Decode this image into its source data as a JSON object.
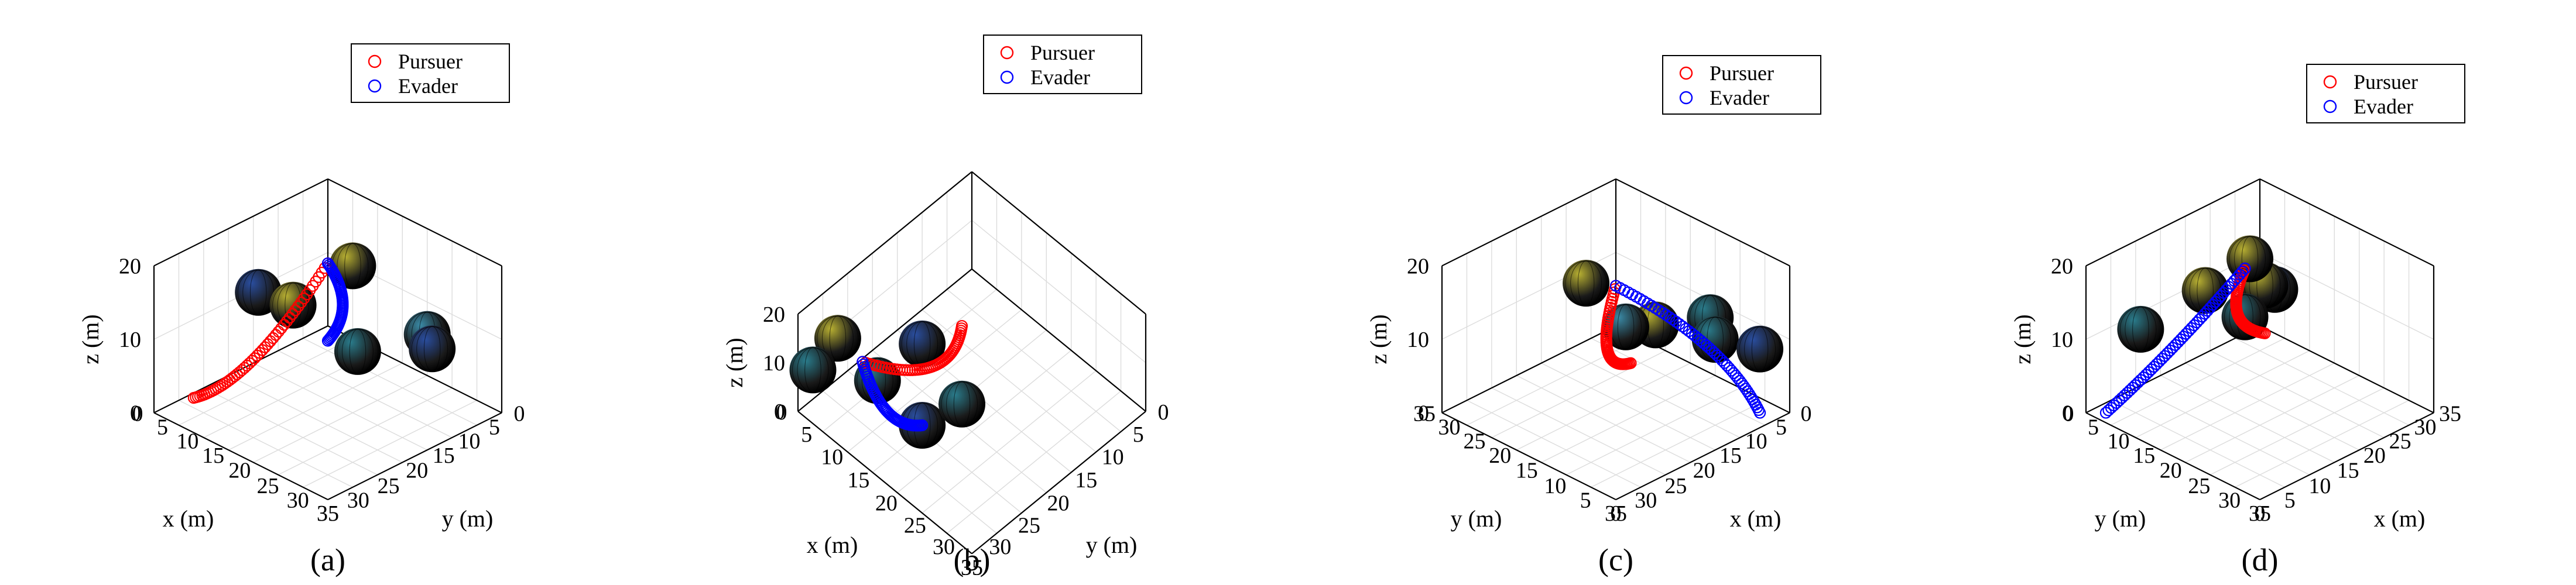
{
  "figure": {
    "panels": [
      {
        "caption": "(a)"
      },
      {
        "caption": "(b)"
      },
      {
        "caption": "(c)"
      },
      {
        "caption": "(d)"
      }
    ]
  },
  "chart_data": [
    {
      "type": "scatter3d",
      "caption": "(a)",
      "title": "",
      "xlabel": "x (m)",
      "ylabel": "y (m)",
      "zlabel": "z (m)",
      "xlim": [
        0,
        35
      ],
      "ylim": [
        0,
        35
      ],
      "zlim": [
        0,
        20
      ],
      "x_ticks": [
        0,
        5,
        10,
        15,
        20,
        25,
        30,
        35
      ],
      "y_ticks": [
        0,
        5,
        10,
        15,
        20,
        25,
        30,
        35
      ],
      "z_ticks": [
        0,
        10,
        20
      ],
      "grid": true,
      "legend": {
        "position": "top-right",
        "entries": [
          "Pursuer",
          "Evader"
        ]
      },
      "view": {
        "azimuth_deg": 45,
        "elevation_deg": 30
      },
      "series": [
        {
          "name": "Pursuer",
          "color": "#ff0000",
          "marker": "open-circle",
          "start": [
            1,
            28,
            0
          ],
          "end": [
            17,
            17,
            20
          ],
          "control": [
            10,
            26,
            4
          ]
        },
        {
          "name": "Evader",
          "color": "#0000ff",
          "marker": "open-circle",
          "start": [
            3,
            3,
            0
          ],
          "end": [
            17,
            17,
            20
          ],
          "control": [
            14,
            8,
            10
          ]
        }
      ],
      "obstacles": [
        {
          "center": [
            4,
            18,
            12
          ],
          "color": "#2a4ea0"
        },
        {
          "center": [
            16,
            23,
            16
          ],
          "color": "#b8b032"
        },
        {
          "center": [
            20,
            15,
            20
          ],
          "color": "#b8b032"
        },
        {
          "center": [
            20,
            14,
            8
          ],
          "color": "#2a7c8c"
        },
        {
          "center": [
            28,
            8,
            11
          ],
          "color": "#3a8aa6"
        },
        {
          "center": [
            24,
            3,
            6
          ],
          "color": "#2a4ea0"
        }
      ]
    },
    {
      "type": "scatter3d",
      "caption": "(b)",
      "title": "",
      "xlabel": "x (m)",
      "ylabel": "y (m)",
      "zlabel": "z (m)",
      "xlim": [
        0,
        35
      ],
      "ylim": [
        0,
        35
      ],
      "zlim": [
        0,
        20
      ],
      "x_ticks": [
        0,
        5,
        10,
        15,
        20,
        25,
        30,
        35
      ],
      "y_ticks": [
        0,
        5,
        10,
        15,
        20,
        25,
        30,
        35
      ],
      "z_ticks": [
        0,
        10,
        20
      ],
      "grid": true,
      "legend": {
        "position": "top-right",
        "entries": [
          "Pursuer",
          "Evader"
        ]
      },
      "view": {
        "azimuth_deg": 45,
        "elevation_deg": 55
      },
      "series": [
        {
          "name": "Pursuer",
          "color": "#ff0000",
          "marker": "open-circle",
          "start": [
            6,
            8,
            0
          ],
          "end": [
            4,
            26,
            6
          ],
          "control": [
            14,
            18,
            2
          ]
        },
        {
          "name": "Evader",
          "color": "#0000ff",
          "marker": "open-circle",
          "start": [
            19,
            29,
            8
          ],
          "end": [
            4,
            26,
            6
          ],
          "control": [
            12,
            30,
            2
          ]
        }
      ],
      "obstacles": [
        {
          "center": [
            1,
            28,
            10
          ],
          "color": "#b8b032"
        },
        {
          "center": [
            0,
            32,
            6
          ],
          "color": "#2a7c8c"
        },
        {
          "center": [
            9,
            28,
            8
          ],
          "color": "#2a7c8c"
        },
        {
          "center": [
            19,
            29,
            8
          ],
          "color": "#2a4ea0"
        },
        {
          "center": [
            6,
            16,
            3
          ],
          "color": "#2a4ea0"
        },
        {
          "center": [
            18,
            20,
            4
          ],
          "color": "#2a7c8c"
        }
      ]
    },
    {
      "type": "scatter3d",
      "caption": "(c)",
      "title": "",
      "xlabel": "x (m)",
      "ylabel": "y (m)",
      "zlabel": "z (m)",
      "xlim": [
        0,
        35
      ],
      "ylim": [
        0,
        35
      ],
      "zlim": [
        0,
        20
      ],
      "x_ticks": [
        0,
        5,
        10,
        15,
        20,
        25,
        30,
        35
      ],
      "y_ticks": [
        0,
        5,
        10,
        15,
        20,
        25,
        30,
        35
      ],
      "z_ticks": [
        0,
        10,
        20
      ],
      "grid": true,
      "legend": {
        "position": "top-right",
        "entries": [
          "Pursuer",
          "Evader"
        ]
      },
      "view": {
        "azimuth_deg": 135,
        "elevation_deg": 30
      },
      "series": [
        {
          "name": "Pursuer",
          "color": "#ff0000",
          "marker": "open-circle",
          "start": [
            6,
            26,
            0
          ],
          "end": [
            23,
            12,
            21
          ],
          "control": [
            18,
            22,
            4
          ]
        },
        {
          "name": "Evader",
          "color": "#0000ff",
          "marker": "open-circle",
          "start": [
            3,
            3,
            0
          ],
          "end": [
            23,
            12,
            21
          ],
          "control": [
            10,
            3,
            12
          ]
        }
      ],
      "obstacles": [
        {
          "center": [
            14,
            2,
            17
          ],
          "color": "#2a7c8c"
        },
        {
          "center": [
            18,
            9,
            15
          ],
          "color": "#b8b032"
        },
        {
          "center": [
            24,
            17,
            20
          ],
          "color": "#b8b032"
        },
        {
          "center": [
            9,
            6,
            11
          ],
          "color": "#2a7c8c"
        },
        {
          "center": [
            2,
            4,
            8
          ],
          "color": "#2a4ea0"
        },
        {
          "center": [
            14,
            19,
            10
          ],
          "color": "#3a8aa6"
        }
      ]
    },
    {
      "type": "scatter3d",
      "caption": "(d)",
      "title": "",
      "xlabel": "x (m)",
      "ylabel": "y (m)",
      "zlabel": "z (m)",
      "xlim": [
        0,
        35
      ],
      "ylim": [
        0,
        35
      ],
      "zlim": [
        0,
        20
      ],
      "x_ticks": [
        35,
        30,
        25,
        20,
        15,
        10,
        5,
        0
      ],
      "y_ticks": [
        0,
        5,
        10,
        15,
        20,
        25,
        30,
        35
      ],
      "z_ticks": [
        0,
        10,
        20
      ],
      "grid": true,
      "legend": {
        "position": "top-right",
        "entries": [
          "Pursuer",
          "Evader"
        ]
      },
      "view": {
        "azimuth_deg": -45,
        "elevation_deg": 30
      },
      "series": [
        {
          "name": "Pursuer",
          "color": "#ff0000",
          "marker": "open-circle",
          "start": [
            34,
            2,
            0
          ],
          "end": [
            14,
            18,
            21
          ],
          "control": [
            25,
            2,
            4
          ]
        },
        {
          "name": "Evader",
          "color": "#0000ff",
          "marker": "open-circle",
          "start": [
            2,
            2,
            0
          ],
          "end": [
            14,
            18,
            21
          ],
          "control": [
            4,
            14,
            12
          ]
        }
      ],
      "obstacles": [
        {
          "center": [
            32,
            6,
            8
          ],
          "color": "#2a4ea0"
        },
        {
          "center": [
            20,
            16,
            16
          ],
          "color": "#b8b032"
        },
        {
          "center": [
            10,
            14,
            18
          ],
          "color": "#b8b032"
        },
        {
          "center": [
            12,
            21,
            24
          ],
          "color": "#b8b032"
        },
        {
          "center": [
            22,
            10,
            9
          ],
          "color": "#2a7c8c"
        },
        {
          "center": [
            9,
            2,
            9
          ],
          "color": "#2a7c8c"
        }
      ]
    }
  ]
}
